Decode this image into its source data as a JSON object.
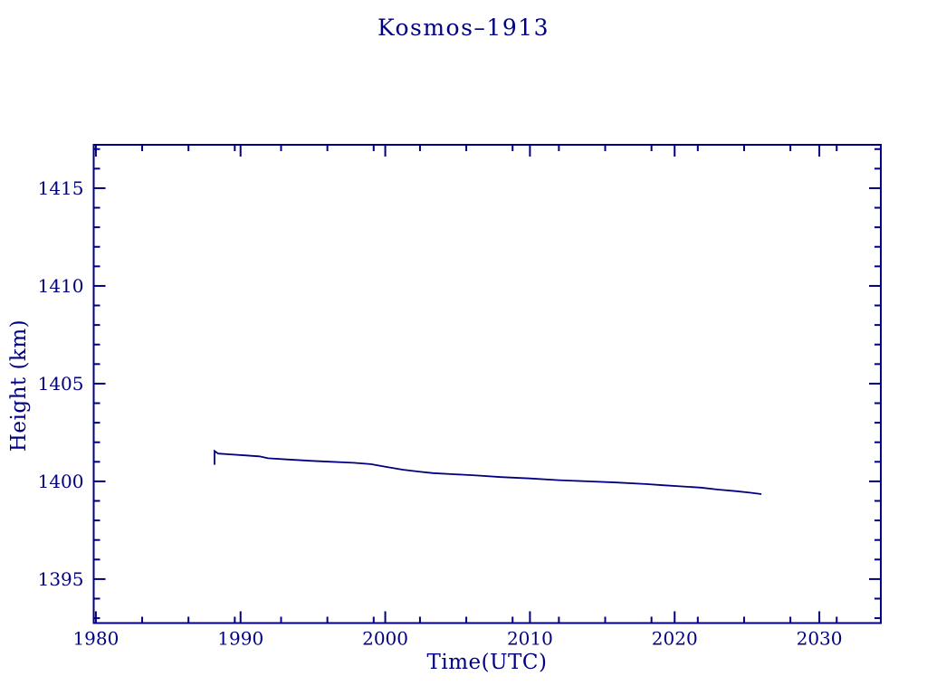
{
  "page": {
    "background_color": "#ffffff",
    "accent_color": "#000080"
  },
  "chart_data": {
    "type": "line",
    "title": "Kosmos–1913",
    "xlabel": "Time(UTC)",
    "ylabel": "Height (km)",
    "axis_color": "#000080",
    "line_color": "#000080",
    "background": "#ffffff",
    "grid": false,
    "legend": null,
    "xlim": [
      1979.85,
      2034.25
    ],
    "ylim": [
      1392.75,
      1417.22
    ],
    "x_major_ticks": [
      1980,
      1990,
      2000,
      2010,
      2020,
      2030
    ],
    "x_tick_labels": [
      "1980",
      "1990",
      "2000",
      "2010",
      "2020",
      "2030"
    ],
    "x_minor_anchor": 1980,
    "x_minor_step": 3.2,
    "y_major_ticks": [
      1395,
      1400,
      1405,
      1410,
      1415
    ],
    "y_tick_labels": [
      "1395",
      "1400",
      "1405",
      "1410",
      "1415"
    ],
    "y_minor_step": 1,
    "series": [
      {
        "name": "Kosmos-1913 orbital height",
        "points": [
          [
            1988.2,
            1400.85
          ],
          [
            1988.2,
            1401.55
          ],
          [
            1988.45,
            1401.42
          ],
          [
            1989.3,
            1401.38
          ],
          [
            1990.3,
            1401.33
          ],
          [
            1991.3,
            1401.28
          ],
          [
            1991.9,
            1401.18
          ],
          [
            1993.2,
            1401.12
          ],
          [
            1994.8,
            1401.05
          ],
          [
            1996.3,
            1401.0
          ],
          [
            1997.8,
            1400.95
          ],
          [
            1999.0,
            1400.88
          ],
          [
            2000.0,
            1400.75
          ],
          [
            2001.2,
            1400.6
          ],
          [
            2002.3,
            1400.5
          ],
          [
            2003.3,
            1400.42
          ],
          [
            2004.8,
            1400.36
          ],
          [
            2006.3,
            1400.3
          ],
          [
            2008.0,
            1400.22
          ],
          [
            2010.0,
            1400.15
          ],
          [
            2012.0,
            1400.06
          ],
          [
            2014.0,
            1400.0
          ],
          [
            2016.0,
            1399.94
          ],
          [
            2018.0,
            1399.86
          ],
          [
            2019.2,
            1399.8
          ],
          [
            2020.5,
            1399.74
          ],
          [
            2021.8,
            1399.68
          ],
          [
            2023.0,
            1399.58
          ],
          [
            2024.2,
            1399.5
          ],
          [
            2025.2,
            1399.42
          ],
          [
            2026.0,
            1399.35
          ]
        ]
      }
    ]
  }
}
